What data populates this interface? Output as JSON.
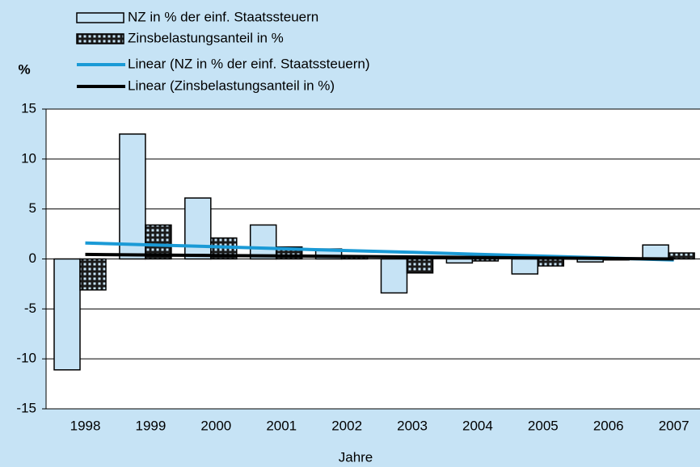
{
  "chart_data": {
    "type": "bar",
    "y_label": "%",
    "x_label": "Jahre",
    "categories": [
      "1998",
      "1999",
      "2000",
      "2001",
      "2002",
      "2003",
      "2004",
      "2005",
      "2006",
      "2007"
    ],
    "series": [
      {
        "name": "NZ in % der einf. Staatssteuern",
        "type": "bar",
        "color": "#c6e3f5",
        "values": [
          -11.1,
          12.5,
          6.1,
          3.4,
          1.0,
          -3.4,
          -0.4,
          -1.5,
          -0.3,
          1.4
        ]
      },
      {
        "name": "Zinsbelastungsanteil in %",
        "type": "bar",
        "color": "#1a1a1a",
        "values": [
          -3.1,
          3.4,
          2.1,
          1.2,
          0.2,
          -1.4,
          -0.2,
          -0.7,
          -0.1,
          0.6
        ]
      },
      {
        "name": "Linear (NZ in % der einf. Staatssteuern)",
        "type": "line",
        "color": "#1a9ad6",
        "values": [
          1.6,
          1.41,
          1.22,
          1.03,
          0.84,
          0.66,
          0.47,
          0.28,
          0.09,
          -0.1
        ]
      },
      {
        "name": "Linear (Zinsbelastungsanteil in %)",
        "type": "line",
        "color": "#000000",
        "values": [
          0.45,
          0.4,
          0.35,
          0.3,
          0.25,
          0.2,
          0.15,
          0.1,
          0.05,
          0.0
        ]
      }
    ],
    "ylim": [
      -15,
      15
    ],
    "yticks": [
      -15,
      -10,
      -5,
      0,
      5,
      10,
      15
    ],
    "grid": true
  }
}
